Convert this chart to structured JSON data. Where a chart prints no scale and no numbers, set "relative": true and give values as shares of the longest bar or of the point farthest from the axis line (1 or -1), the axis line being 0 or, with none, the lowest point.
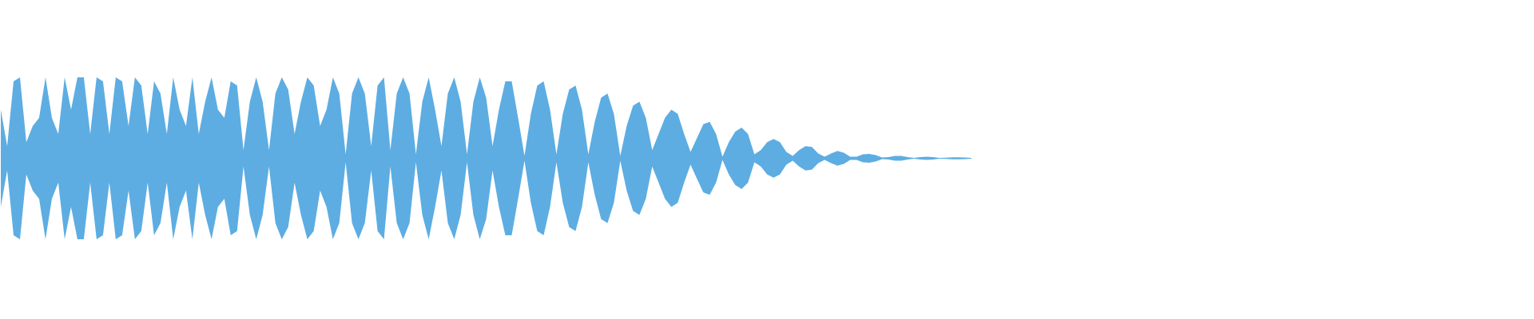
{
  "chart_data": {
    "type": "area",
    "relative": true,
    "tick_labels": false,
    "ref_lines": [
      {
        "axis": "y",
        "value": 0,
        "color": "#5dade2"
      }
    ],
    "categories": [
      null,
      null,
      null,
      null,
      null,
      null,
      null,
      null,
      null,
      null,
      null,
      null,
      null,
      null,
      null,
      null,
      null,
      null,
      null,
      null,
      null,
      null,
      null,
      null,
      null,
      null,
      null,
      null,
      null,
      null,
      null,
      null,
      null,
      null,
      null,
      null,
      null,
      null,
      null,
      null,
      null,
      null,
      null,
      null,
      null,
      null,
      null,
      null,
      null,
      null,
      null,
      null,
      null,
      null,
      null,
      null,
      null,
      null,
      null,
      null,
      null,
      null,
      null,
      null,
      null,
      null,
      null,
      null,
      null,
      null,
      null,
      null,
      null,
      null,
      null,
      null,
      null,
      null,
      null,
      null,
      null,
      null,
      null,
      null,
      null,
      null,
      null,
      null,
      null,
      null,
      null,
      null,
      null,
      null,
      null,
      null,
      null,
      null,
      null,
      null,
      null,
      null,
      null,
      null,
      null,
      null,
      null,
      null,
      null,
      null,
      null,
      null,
      null,
      null,
      null,
      null,
      null,
      null,
      null,
      null,
      null,
      null,
      null,
      null,
      null,
      null,
      null,
      null,
      null,
      null,
      null,
      null,
      null,
      null,
      null,
      null,
      null,
      null,
      null,
      null,
      null,
      null,
      null,
      null,
      null,
      null,
      null,
      null,
      null,
      null,
      null,
      null,
      null
    ],
    "series": [
      {
        "color": "#5dade2",
        "values": [
          0.6,
          0.15,
          0.95,
          1,
          0.2,
          0.4,
          0.5,
          1,
          0.5,
          0.3,
          1,
          0.6,
          1,
          1,
          0.3,
          1,
          0.95,
          0.3,
          1,
          0.95,
          0.4,
          1,
          0.9,
          0.3,
          0.95,
          0.8,
          0.3,
          1,
          0.6,
          0.4,
          1,
          0.3,
          0.7,
          1,
          0.6,
          0.5,
          0.95,
          0.9,
          0.1,
          0.7,
          1,
          0.7,
          0.1,
          0.8,
          1,
          0.85,
          0.3,
          0.7,
          1,
          0.9,
          0.4,
          0.6,
          1,
          0.8,
          0.05,
          0.8,
          1,
          0.8,
          0.15,
          0.9,
          1,
          0.1,
          0.8,
          1,
          0.8,
          0.05,
          0.7,
          1,
          0.6,
          0.15,
          0.8,
          1,
          0.7,
          0.05,
          0.7,
          1,
          0.75,
          0.15,
          0.6,
          0.95,
          0.95,
          0.5,
          0.03,
          0.55,
          0.9,
          0.95,
          0.6,
          0.05,
          0.55,
          0.85,
          0.9,
          0.6,
          0.05,
          0.45,
          0.75,
          0.8,
          0.55,
          0.03,
          0.4,
          0.65,
          0.7,
          0.5,
          0.1,
          0.3,
          0.5,
          0.6,
          0.55,
          0.3,
          0.08,
          0.25,
          0.42,
          0.45,
          0.3,
          0.02,
          0.2,
          0.33,
          0.38,
          0.3,
          0.05,
          0.1,
          0.2,
          0.24,
          0.2,
          0.08,
          0.03,
          0.1,
          0.15,
          0.14,
          0.06,
          0.02,
          0.06,
          0.09,
          0.07,
          0.02,
          0.02,
          0.05,
          0.055,
          0.04,
          0.01,
          0.015,
          0.03,
          0.03,
          0.015,
          0.005,
          0.015,
          0.02,
          0.015,
          0.005,
          0.008,
          0.013,
          0.013,
          0.01,
          0.005
        ]
      },
      {
        "color": "#5dade2",
        "values": [
          -0.6,
          -0.15,
          -0.95,
          -1,
          -0.2,
          -0.4,
          -0.5,
          -1,
          -0.5,
          -0.3,
          -1,
          -0.6,
          -1,
          -1,
          -0.3,
          -1,
          -0.95,
          -0.3,
          -1,
          -0.95,
          -0.4,
          -1,
          -0.9,
          -0.3,
          -0.95,
          -0.8,
          -0.3,
          -1,
          -0.6,
          -0.4,
          -1,
          -0.3,
          -0.7,
          -1,
          -0.6,
          -0.5,
          -0.95,
          -0.9,
          -0.1,
          -0.7,
          -1,
          -0.7,
          -0.1,
          -0.8,
          -1,
          -0.85,
          -0.3,
          -0.7,
          -1,
          -0.9,
          -0.4,
          -0.6,
          -1,
          -0.8,
          -0.05,
          -0.8,
          -1,
          -0.8,
          -0.15,
          -0.9,
          -1,
          -0.1,
          -0.8,
          -1,
          -0.8,
          -0.05,
          -0.7,
          -1,
          -0.6,
          -0.15,
          -0.8,
          -1,
          -0.7,
          -0.05,
          -0.7,
          -1,
          -0.75,
          -0.15,
          -0.6,
          -0.95,
          -0.95,
          -0.5,
          -0.03,
          -0.55,
          -0.9,
          -0.95,
          -0.6,
          -0.05,
          -0.55,
          -0.85,
          -0.9,
          -0.6,
          -0.05,
          -0.45,
          -0.75,
          -0.8,
          -0.55,
          -0.03,
          -0.4,
          -0.65,
          -0.7,
          -0.5,
          -0.1,
          -0.3,
          -0.5,
          -0.6,
          -0.55,
          -0.3,
          -0.08,
          -0.25,
          -0.42,
          -0.45,
          -0.3,
          -0.02,
          -0.2,
          -0.33,
          -0.38,
          -0.3,
          -0.05,
          -0.1,
          -0.2,
          -0.24,
          -0.2,
          -0.08,
          -0.03,
          -0.1,
          -0.15,
          -0.14,
          -0.06,
          -0.02,
          -0.06,
          -0.09,
          -0.07,
          -0.02,
          -0.02,
          -0.05,
          -0.055,
          -0.04,
          -0.01,
          -0.015,
          -0.03,
          -0.03,
          -0.015,
          -0.005,
          -0.015,
          -0.02,
          -0.015,
          -0.005,
          -0.008,
          -0.013,
          -0.013,
          -0.01,
          -0.005
        ]
      }
    ]
  }
}
